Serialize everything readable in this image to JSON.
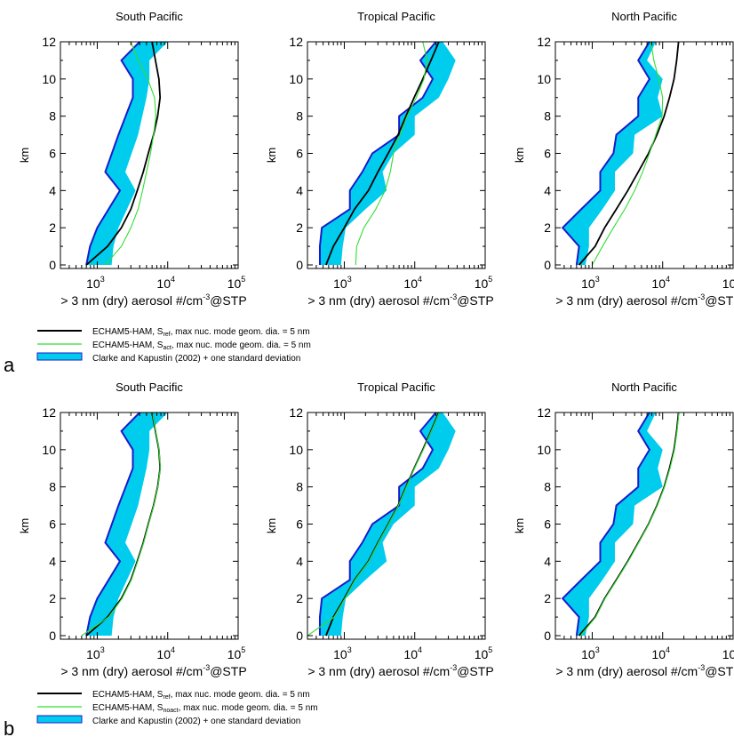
{
  "chart_data": [
    {
      "type": "line",
      "panel": "a",
      "title": "South Pacific",
      "xlabel": "> 3 nm (dry) aerosol #/cm-3@STP",
      "ylabel": "km",
      "xscale": "log",
      "xlim": [
        300,
        100000
      ],
      "ylim": [
        0,
        12
      ],
      "xticks": [
        "10",
        "10",
        "10"
      ],
      "xtick_exp": [
        "3",
        "4",
        "5"
      ],
      "yticks": [
        "0",
        "2",
        "4",
        "6",
        "8",
        "10",
        "12"
      ],
      "series": [
        {
          "name": "Clarke and Kapustin (2002) + one standard deviation",
          "kind": "band",
          "y": [
            0,
            1,
            2,
            4,
            5,
            7,
            9,
            10,
            11,
            12
          ],
          "lower": [
            700,
            790,
            1000,
            2100,
            1300,
            2000,
            3200,
            3200,
            2200,
            4000
          ],
          "upper": [
            1600,
            1700,
            2000,
            3500,
            2500,
            3800,
            5000,
            5500,
            5500,
            10000
          ]
        },
        {
          "name": "ECHAM5-HAM, S_ref, max nuc. mode geom. dia. = 5 nm",
          "kind": "line",
          "y": [
            0,
            1,
            2,
            3,
            4,
            5,
            6,
            7,
            8,
            9,
            10,
            11,
            12
          ],
          "x": [
            700,
            1400,
            2200,
            3000,
            3700,
            4500,
            5300,
            6300,
            7200,
            7800,
            7500,
            6700,
            6000
          ]
        },
        {
          "name": "ECHAM5-HAM, S_act, max nuc. mode geom. dia. = 5 nm",
          "kind": "line",
          "y": [
            0,
            1,
            2,
            3,
            4,
            5,
            6,
            7,
            8,
            9,
            10,
            11,
            12
          ],
          "x": [
            1300,
            2200,
            3000,
            3800,
            4400,
            5000,
            5700,
            6300,
            6800,
            6500,
            5200,
            3800,
            3000
          ]
        }
      ]
    },
    {
      "type": "line",
      "panel": "a",
      "title": "Tropical Pacific",
      "xlabel": "> 3 nm (dry) aerosol #/cm-3@STP",
      "ylabel": "km",
      "xscale": "log",
      "xlim": [
        300,
        100000
      ],
      "ylim": [
        0,
        12
      ],
      "xticks": [
        "10",
        "10",
        "10"
      ],
      "xtick_exp": [
        "3",
        "4",
        "5"
      ],
      "yticks": [
        "0",
        "2",
        "4",
        "6",
        "8",
        "10",
        "12"
      ],
      "series": [
        {
          "name": "Clarke and Kapustin (2002) + one standard deviation",
          "kind": "band",
          "y": [
            0,
            1,
            2,
            3,
            4,
            5,
            6,
            7,
            8,
            9,
            10,
            11,
            12
          ],
          "lower": [
            450,
            450,
            480,
            1200,
            1200,
            1800,
            2500,
            6000,
            6000,
            13000,
            18000,
            12000,
            20000
          ],
          "upper": [
            900,
            950,
            1050,
            2000,
            4000,
            3500,
            5000,
            10000,
            10000,
            22000,
            30000,
            38000,
            25000
          ]
        },
        {
          "name": "ECHAM5-HAM, S_ref, max nuc. mode geom. dia. = 5 nm",
          "kind": "line",
          "y": [
            0,
            1,
            2,
            3,
            4,
            5,
            6,
            7,
            8,
            9,
            10,
            11,
            12
          ],
          "x": [
            550,
            700,
            1000,
            1400,
            2200,
            3000,
            4200,
            5800,
            7500,
            9800,
            13000,
            17000,
            22000
          ]
        },
        {
          "name": "ECHAM5-HAM, S_act, max nuc. mode geom. dia. = 5 nm",
          "kind": "line",
          "y": [
            0,
            1,
            2,
            3,
            4,
            5,
            6,
            7,
            8,
            9,
            10,
            11,
            12
          ],
          "x": [
            1450,
            1500,
            1900,
            2800,
            3800,
            4500,
            5000,
            6200,
            7800,
            10500,
            13500,
            15000,
            13000
          ]
        }
      ]
    },
    {
      "type": "line",
      "panel": "a",
      "title": "North Pacific",
      "xlabel": "> 3 nm (dry) aerosol #/cm-3@STP",
      "ylabel": "km",
      "xscale": "log",
      "xlim": [
        300,
        100000
      ],
      "ylim": [
        0,
        12
      ],
      "xticks": [
        "10",
        "10",
        "10"
      ],
      "xtick_exp": [
        "3",
        "4",
        "5"
      ],
      "yticks": [
        "0",
        "2",
        "4",
        "6",
        "8",
        "10",
        "12"
      ],
      "series": [
        {
          "name": "Clarke and Kapustin (2002) + one standard deviation",
          "kind": "band",
          "y": [
            0,
            1,
            2,
            3,
            4,
            5,
            6,
            7,
            8,
            9,
            10,
            11,
            12
          ],
          "lower": [
            600,
            650,
            380,
            700,
            1300,
            1300,
            2000,
            2200,
            4500,
            4500,
            6500,
            4500,
            6500
          ],
          "upper": [
            800,
            900,
            900,
            1400,
            2100,
            2100,
            3800,
            4000,
            10000,
            8500,
            10000,
            6000,
            8000
          ]
        },
        {
          "name": "ECHAM5-HAM, S_ref, max nuc. mode geom. dia. = 5 nm",
          "kind": "line",
          "y": [
            0,
            1,
            2,
            3,
            4,
            5,
            6,
            7,
            8,
            9,
            10,
            11,
            12
          ],
          "x": [
            650,
            1100,
            1500,
            2200,
            3200,
            4500,
            6300,
            8300,
            10500,
            12500,
            14500,
            15800,
            16800
          ]
        },
        {
          "name": "ECHAM5-HAM, S_act, max nuc. mode geom. dia. = 5 nm",
          "kind": "line",
          "y": [
            0,
            1,
            2,
            3,
            4,
            5,
            6,
            7,
            8,
            9,
            10,
            11,
            12
          ],
          "x": [
            1000,
            1400,
            2000,
            2900,
            4000,
            5200,
            6500,
            8000,
            9800,
            10000,
            8800,
            7500,
            6800
          ]
        }
      ]
    },
    {
      "type": "line",
      "panel": "b",
      "title": "South Pacific",
      "xlabel": "> 3 nm (dry) aerosol #/cm-3@STP",
      "ylabel": "km",
      "xscale": "log",
      "xlim": [
        300,
        100000
      ],
      "ylim": [
        0,
        12
      ],
      "xticks": [
        "10",
        "10",
        "10"
      ],
      "xtick_exp": [
        "3",
        "4",
        "5"
      ],
      "yticks": [
        "0",
        "2",
        "4",
        "6",
        "8",
        "10",
        "12"
      ],
      "series": [
        {
          "name": "Clarke and Kapustin (2002) + one standard deviation",
          "kind": "band",
          "y": [
            0,
            1,
            2,
            4,
            5,
            7,
            9,
            10,
            11,
            12
          ],
          "lower": [
            700,
            790,
            1000,
            2100,
            1300,
            2000,
            3200,
            3200,
            2200,
            4000
          ],
          "upper": [
            1600,
            1700,
            2000,
            3500,
            2500,
            3800,
            5000,
            5500,
            5500,
            10000
          ]
        },
        {
          "name": "ECHAM5-HAM, S_ref, max nuc. mode geom. dia. = 5 nm",
          "kind": "line",
          "y": [
            0,
            1,
            2,
            3,
            4,
            5,
            6,
            7,
            8,
            9,
            10,
            11,
            12
          ],
          "x": [
            700,
            1400,
            2200,
            3000,
            3700,
            4500,
            5300,
            6300,
            7200,
            7800,
            7500,
            6700,
            6000
          ]
        },
        {
          "name": "ECHAM5-HAM, S_noact, max nuc. mode geom. dia. = 5 nm",
          "kind": "line",
          "y": [
            0,
            1,
            2,
            3,
            4,
            5,
            6,
            7,
            8,
            9,
            10,
            11,
            12
          ],
          "x": [
            600,
            1450,
            2250,
            3050,
            3750,
            4550,
            5350,
            6350,
            7250,
            7850,
            7550,
            6750,
            6050
          ]
        }
      ]
    },
    {
      "type": "line",
      "panel": "b",
      "title": "Tropical Pacific",
      "xlabel": "> 3 nm (dry) aerosol #/cm-3@STP",
      "ylabel": "km",
      "xscale": "log",
      "xlim": [
        300,
        100000
      ],
      "ylim": [
        0,
        12
      ],
      "xticks": [
        "10",
        "10",
        "10"
      ],
      "xtick_exp": [
        "3",
        "4",
        "5"
      ],
      "yticks": [
        "0",
        "2",
        "4",
        "6",
        "8",
        "10",
        "12"
      ],
      "series": [
        {
          "name": "Clarke and Kapustin (2002) + one standard deviation",
          "kind": "band",
          "y": [
            0,
            1,
            2,
            3,
            4,
            5,
            6,
            7,
            8,
            9,
            10,
            11,
            12
          ],
          "lower": [
            450,
            450,
            480,
            1200,
            1200,
            1800,
            2500,
            6000,
            6000,
            13000,
            18000,
            12000,
            20000
          ],
          "upper": [
            900,
            950,
            1050,
            2000,
            4000,
            3500,
            5000,
            10000,
            10000,
            22000,
            30000,
            38000,
            25000
          ]
        },
        {
          "name": "ECHAM5-HAM, S_ref, max nuc. mode geom. dia. = 5 nm",
          "kind": "line",
          "y": [
            0,
            1,
            2,
            3,
            4,
            5,
            6,
            7,
            8,
            9,
            10,
            11,
            12
          ],
          "x": [
            550,
            700,
            1000,
            1400,
            2200,
            3000,
            4200,
            5800,
            7500,
            9800,
            13000,
            17000,
            22000
          ]
        },
        {
          "name": "ECHAM5-HAM, S_noact, max nuc. mode geom. dia. = 5 nm",
          "kind": "line",
          "y": [
            0,
            1,
            2,
            3,
            4,
            5,
            6,
            7,
            8,
            9,
            10,
            11,
            12
          ],
          "x": [
            300,
            720,
            1020,
            1420,
            2230,
            3040,
            4250,
            5850,
            7600,
            9900,
            13200,
            17200,
            22300
          ]
        }
      ]
    },
    {
      "type": "line",
      "panel": "b",
      "title": "North Pacific",
      "xlabel": "> 3 nm (dry) aerosol #/cm-3@STP",
      "ylabel": "km",
      "xscale": "log",
      "xlim": [
        300,
        100000
      ],
      "ylim": [
        0,
        12
      ],
      "xticks": [
        "10",
        "10",
        "10"
      ],
      "xtick_exp": [
        "3",
        "4",
        "5"
      ],
      "yticks": [
        "0",
        "2",
        "4",
        "6",
        "8",
        "10",
        "12"
      ],
      "series": [
        {
          "name": "Clarke and Kapustin (2002) + one standard deviation",
          "kind": "band",
          "y": [
            0,
            1,
            2,
            3,
            4,
            5,
            6,
            7,
            8,
            9,
            10,
            11,
            12
          ],
          "lower": [
            600,
            650,
            380,
            700,
            1300,
            1300,
            2000,
            2200,
            4500,
            4500,
            6500,
            4500,
            6500
          ],
          "upper": [
            800,
            900,
            900,
            1400,
            2100,
            2100,
            3800,
            4000,
            10000,
            8500,
            10000,
            6000,
            8000
          ]
        },
        {
          "name": "ECHAM5-HAM, S_ref, max nuc. mode geom. dia. = 5 nm",
          "kind": "line",
          "y": [
            0,
            1,
            2,
            3,
            4,
            5,
            6,
            7,
            8,
            9,
            10,
            11,
            12
          ],
          "x": [
            650,
            1100,
            1500,
            2200,
            3200,
            4500,
            6300,
            8300,
            10500,
            12500,
            14500,
            15800,
            16800
          ]
        },
        {
          "name": "ECHAM5-HAM, S_noact, max nuc. mode geom. dia. = 5 nm",
          "kind": "line",
          "y": [
            0,
            1,
            2,
            3,
            4,
            5,
            6,
            7,
            8,
            9,
            10,
            11,
            12
          ],
          "x": [
            680,
            1120,
            1520,
            2230,
            3250,
            4550,
            6350,
            8400,
            10600,
            12700,
            14700,
            16000,
            17000
          ]
        }
      ]
    }
  ],
  "legends": {
    "a": [
      {
        "kind": "line",
        "color": "#000000",
        "pre": "ECHAM5-HAM, S",
        "sub": "ref",
        "post": ", max nuc. mode geom. dia. = 5 nm"
      },
      {
        "kind": "line",
        "color": "#33dd33",
        "pre": "ECHAM5-HAM, S",
        "sub": "act",
        "post": ", max nuc. mode geom. dia. = 5 nm"
      },
      {
        "kind": "band",
        "color": "#00ccee",
        "pre": "Clarke and Kapustin (2002) + one standard deviation",
        "sub": "",
        "post": ""
      }
    ],
    "b": [
      {
        "kind": "line",
        "color": "#000000",
        "pre": "ECHAM5-HAM, S",
        "sub": "ref",
        "post": ", max nuc. mode geom. dia. = 5 nm"
      },
      {
        "kind": "line",
        "color": "#33dd33",
        "pre": "ECHAM5-HAM, S",
        "sub": "noact",
        "post": ", max nuc. mode geom. dia. = 5 nm"
      },
      {
        "kind": "band",
        "color": "#00ccee",
        "pre": "Clarke and Kapustin (2002) + one standard deviation",
        "sub": "",
        "post": ""
      }
    ]
  },
  "panel_letters": [
    "a",
    "b"
  ],
  "xlabel_parts": {
    "pre": "> 3 nm (dry) aerosol #/cm",
    "sup": "-3",
    "post": "@STP"
  },
  "colors": {
    "model_ref": "#000000",
    "model_alt": "#33dd33",
    "band_fill": "#00ccee",
    "band_edge": "#1a1acc"
  }
}
